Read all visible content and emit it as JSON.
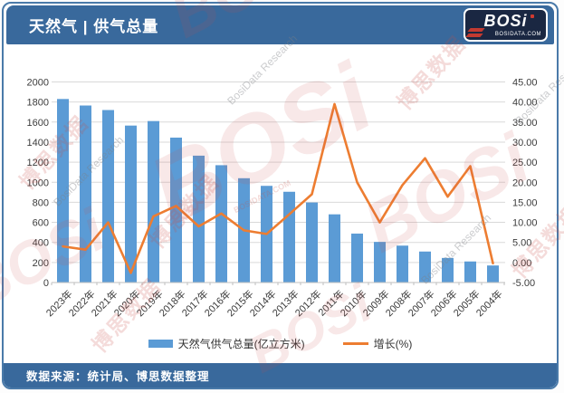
{
  "header": {
    "title": "天然气 | 供气总量",
    "logo": {
      "text": "BOSi",
      "subtext": "BOSIDATA.COM"
    }
  },
  "chart_data": {
    "type": "bar+line",
    "categories": [
      "2023年",
      "2022年",
      "2021年",
      "2020年",
      "2019年",
      "2018年",
      "2017年",
      "2016年",
      "2015年",
      "2014年",
      "2013年",
      "2012年",
      "2011年",
      "2010年",
      "2009年",
      "2008年",
      "2007年",
      "2006年",
      "2005年",
      "2004年"
    ],
    "series": [
      {
        "name": "天然气供气总量(亿立方米)",
        "type": "bar",
        "axis": "left",
        "color": "#5b9bd5",
        "values": [
          1830,
          1765,
          1720,
          1565,
          1610,
          1445,
          1265,
          1170,
          1040,
          964,
          905,
          798,
          680,
          488,
          405,
          368,
          309,
          245,
          210,
          170
        ]
      },
      {
        "name": "增长(%)",
        "type": "line",
        "axis": "right",
        "color": "#ed7d31",
        "values": [
          4.0,
          3.2,
          10.0,
          -2.6,
          11.5,
          14.1,
          9.0,
          12.2,
          8.0,
          7.1,
          12.0,
          17.0,
          39.5,
          20.0,
          10.0,
          19.3,
          26.0,
          16.4,
          24.0,
          -0.2
        ]
      }
    ],
    "left_axis": {
      "min": 0,
      "max": 2000,
      "step": 200,
      "decimals": 0
    },
    "right_axis": {
      "min": -5,
      "max": 45,
      "step": 5,
      "decimals": 2
    },
    "grid": true,
    "legend_position": "bottom",
    "title": ""
  },
  "footer": {
    "text": "数据来源：统计局、博思数据整理"
  },
  "watermarks": {
    "cn": "博思数据",
    "en": "BosiData Research",
    "logo": "BOSi",
    "site": "BOSIDATA.COM"
  }
}
